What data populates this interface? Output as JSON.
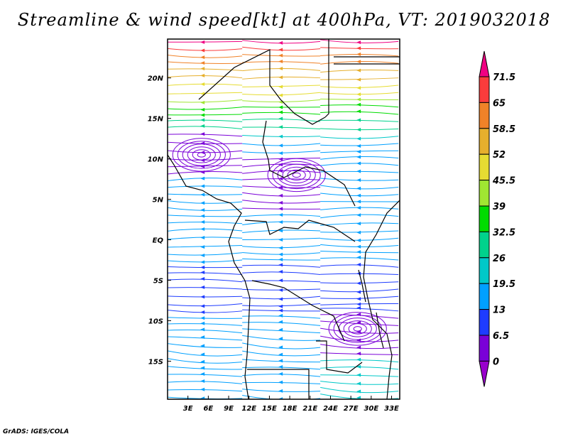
{
  "title": "Streamline & wind speed[kt] at 400hPa, VT: 2019032018",
  "footer": "GrADS: IGES/COLA",
  "map": {
    "lon_range": [
      0,
      34.2
    ],
    "lat_range": [
      -19.7,
      24.8
    ],
    "lon_ticks": [
      {
        "v": 3,
        "label": "3E"
      },
      {
        "v": 6,
        "label": "6E"
      },
      {
        "v": 9,
        "label": "9E"
      },
      {
        "v": 12,
        "label": "12E"
      },
      {
        "v": 15,
        "label": "15E"
      },
      {
        "v": 18,
        "label": "18E"
      },
      {
        "v": 21,
        "label": "21E"
      },
      {
        "v": 24,
        "label": "24E"
      },
      {
        "v": 27,
        "label": "27E"
      },
      {
        "v": 30,
        "label": "30E"
      },
      {
        "v": 33,
        "label": "33E"
      }
    ],
    "lat_ticks": [
      {
        "v": 20,
        "label": "20N"
      },
      {
        "v": 15,
        "label": "15N"
      },
      {
        "v": 10,
        "label": "10N"
      },
      {
        "v": 5,
        "label": "5N"
      },
      {
        "v": 0,
        "label": "EQ"
      },
      {
        "v": -5,
        "label": "5S"
      },
      {
        "v": -10,
        "label": "10S"
      },
      {
        "v": -15,
        "label": "15S"
      }
    ]
  },
  "colorbar": {
    "levels": [
      "0",
      "6.5",
      "13",
      "19.5",
      "26",
      "32.5",
      "39",
      "45.5",
      "52",
      "58.5",
      "65",
      "71.5"
    ],
    "colors": [
      "#9900cc",
      "#7a00d8",
      "#1e3cff",
      "#00a0ff",
      "#00c8c8",
      "#00d28c",
      "#00dc00",
      "#a0e632",
      "#e6dc32",
      "#e6af2d",
      "#f08228",
      "#fa3c3c",
      "#f00082"
    ]
  }
}
